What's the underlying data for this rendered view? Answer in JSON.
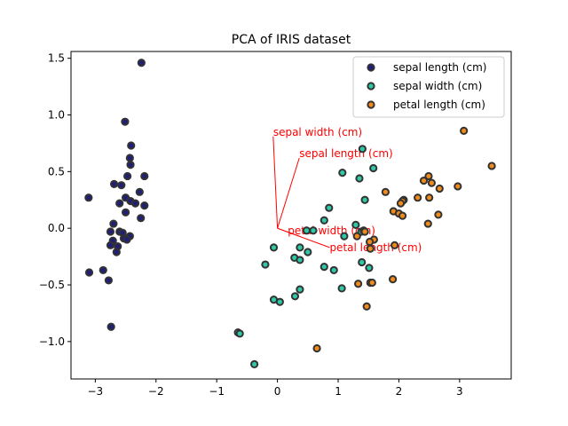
{
  "chart_data": {
    "type": "scatter",
    "title": "PCA of IRIS dataset",
    "xlabel": "",
    "ylabel": "",
    "xlim": [
      -3.4,
      3.85
    ],
    "ylim": [
      -1.33,
      1.56
    ],
    "xticks": [
      -3,
      -2,
      -1,
      0,
      1,
      2,
      3
    ],
    "yticks": [
      -1.0,
      -0.5,
      0.0,
      0.5,
      1.0,
      1.5
    ],
    "grid": false,
    "legend_position": "top-right",
    "series": [
      {
        "name": "sepal length (cm)",
        "color": "#1f1f7a",
        "points": [
          [
            -2.24,
            1.46
          ],
          [
            -2.51,
            0.94
          ],
          [
            -2.41,
            0.73
          ],
          [
            -2.43,
            0.62
          ],
          [
            -2.42,
            0.56
          ],
          [
            -2.19,
            0.46
          ],
          [
            -2.47,
            0.46
          ],
          [
            -2.69,
            0.39
          ],
          [
            -2.57,
            0.38
          ],
          [
            -2.27,
            0.32
          ],
          [
            -2.5,
            0.27
          ],
          [
            -3.11,
            0.27
          ],
          [
            -2.42,
            0.24
          ],
          [
            -2.6,
            0.22
          ],
          [
            -2.34,
            0.22
          ],
          [
            -2.19,
            0.2
          ],
          [
            -2.5,
            0.14
          ],
          [
            -2.25,
            0.09
          ],
          [
            -2.7,
            0.04
          ],
          [
            -2.75,
            -0.03
          ],
          [
            -2.6,
            -0.03
          ],
          [
            -2.55,
            -0.04
          ],
          [
            -2.43,
            -0.07
          ],
          [
            -2.53,
            -0.09
          ],
          [
            -2.71,
            -0.11
          ],
          [
            -2.48,
            -0.1
          ],
          [
            -2.63,
            -0.16
          ],
          [
            -2.75,
            -0.15
          ],
          [
            -2.65,
            -0.21
          ],
          [
            -2.87,
            -0.37
          ],
          [
            -3.1,
            -0.39
          ],
          [
            -2.78,
            -0.46
          ],
          [
            -2.74,
            -0.87
          ]
        ]
      },
      {
        "name": "sepal width (cm)",
        "color": "#2ec9a6",
        "points": [
          [
            1.4,
            0.7
          ],
          [
            1.58,
            0.53
          ],
          [
            1.07,
            0.49
          ],
          [
            1.35,
            0.44
          ],
          [
            1.44,
            0.25
          ],
          [
            0.85,
            0.18
          ],
          [
            0.77,
            0.07
          ],
          [
            1.29,
            0.03
          ],
          [
            0.48,
            -0.02
          ],
          [
            1.38,
            -0.03
          ],
          [
            1.1,
            -0.07
          ],
          [
            0.59,
            -0.02
          ],
          [
            -0.06,
            -0.17
          ],
          [
            0.37,
            -0.17
          ],
          [
            0.5,
            -0.21
          ],
          [
            0.28,
            -0.26
          ],
          [
            0.37,
            -0.28
          ],
          [
            -0.2,
            -0.32
          ],
          [
            1.39,
            -0.3
          ],
          [
            1.51,
            -0.35
          ],
          [
            0.77,
            -0.34
          ],
          [
            0.93,
            -0.37
          ],
          [
            1.06,
            -0.53
          ],
          [
            0.37,
            -0.54
          ],
          [
            0.29,
            -0.6
          ],
          [
            -0.06,
            -0.63
          ],
          [
            0.04,
            -0.65
          ],
          [
            -0.65,
            -0.92
          ],
          [
            -0.62,
            -0.93
          ],
          [
            -0.38,
            -1.2
          ]
        ]
      },
      {
        "name": "petal length (cm)",
        "color": "#f08a1c",
        "points": [
          [
            3.07,
            0.86
          ],
          [
            3.53,
            0.55
          ],
          [
            2.49,
            0.46
          ],
          [
            2.41,
            0.42
          ],
          [
            2.54,
            0.4
          ],
          [
            2.97,
            0.37
          ],
          [
            2.67,
            0.35
          ],
          [
            1.78,
            0.32
          ],
          [
            2.31,
            0.27
          ],
          [
            2.5,
            0.27
          ],
          [
            2.08,
            0.25
          ],
          [
            2.06,
            0.24
          ],
          [
            2.03,
            0.22
          ],
          [
            1.91,
            0.15
          ],
          [
            2.0,
            0.13
          ],
          [
            2.65,
            0.12
          ],
          [
            2.06,
            0.11
          ],
          [
            2.48,
            0.04
          ],
          [
            1.42,
            -0.02
          ],
          [
            1.44,
            -0.03
          ],
          [
            1.31,
            -0.07
          ],
          [
            1.59,
            -0.1
          ],
          [
            1.52,
            -0.12
          ],
          [
            1.93,
            -0.15
          ],
          [
            1.53,
            -0.18
          ],
          [
            1.9,
            -0.45
          ],
          [
            1.33,
            -0.49
          ],
          [
            1.53,
            -0.48
          ],
          [
            1.56,
            -0.48
          ],
          [
            1.47,
            -0.69
          ],
          [
            0.65,
            -1.06
          ]
        ]
      }
    ],
    "arrows": [
      {
        "label": "sepal length (cm)",
        "dx": 0.36,
        "dy": 0.62
      },
      {
        "label": "sepal width (cm)",
        "dx": -0.07,
        "dy": 0.81
      },
      {
        "label": "petal length (cm)",
        "dx": 0.86,
        "dy": -0.17
      },
      {
        "label": "petal width (cm)",
        "dx": 0.36,
        "dy": -0.07
      }
    ],
    "arrow_color": "#ff0000"
  }
}
